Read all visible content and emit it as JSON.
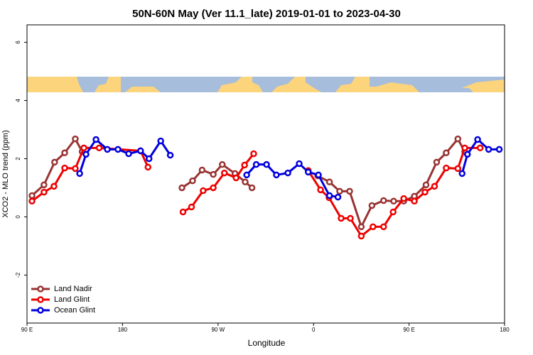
{
  "chart_data": {
    "type": "line",
    "title": "50N-60N May (Ver 11.1_late)   2019-01-01 to 2023-04-30",
    "xlabel": "Longitude",
    "ylabel": "XCO2 - MLO trend (ppm)",
    "xlim": [
      90,
      540
    ],
    "ylim": [
      -3.65,
      6.6
    ],
    "xticks": [
      {
        "value": 90,
        "label": "90 E"
      },
      {
        "value": 180,
        "label": "180"
      },
      {
        "value": 270,
        "label": "90 W"
      },
      {
        "value": 360,
        "label": "0"
      },
      {
        "value": 450,
        "label": "90 E"
      },
      {
        "value": 540,
        "label": "180"
      }
    ],
    "yticks": [
      -2,
      0,
      2,
      4,
      6
    ],
    "legend": "bottom-left",
    "series": [
      {
        "name": "Land Nadir",
        "color": "#993333",
        "x": [
          94.7,
          106,
          116,
          125.5,
          135.5,
          142,
          null,
          236,
          246,
          255,
          265.5,
          274,
          286,
          295.6,
          302,
          null,
          364,
          375,
          384.6,
          394,
          405,
          415,
          426,
          435.5,
          445,
          455,
          466,
          476,
          485,
          496,
          502.5
        ],
        "values": [
          0.73,
          1.1,
          1.88,
          2.2,
          2.68,
          2.24,
          null,
          1.0,
          1.24,
          1.61,
          1.46,
          1.8,
          1.49,
          1.2,
          1.0,
          null,
          1.41,
          1.2,
          0.88,
          0.88,
          -0.34,
          0.39,
          0.56,
          0.54,
          0.54,
          0.71,
          1.1,
          1.88,
          2.2,
          2.68,
          2.24
        ]
      },
      {
        "name": "Land Glint",
        "color": "#ee0000",
        "x": [
          94.7,
          106,
          115.4,
          125.5,
          135.5,
          143.6,
          158,
          197,
          204,
          null,
          237,
          245,
          256,
          265.5,
          276,
          287,
          295,
          303.6,
          null,
          355,
          366.6,
          374.6,
          386,
          394.7,
          405,
          416,
          426,
          435,
          445,
          455,
          465,
          474,
          485,
          496,
          502.5,
          517
        ],
        "values": [
          0.54,
          0.85,
          1.05,
          1.68,
          1.66,
          2.37,
          2.37,
          2.27,
          1.71,
          null,
          0.17,
          0.34,
          0.9,
          1.0,
          1.51,
          1.34,
          1.78,
          2.17,
          null,
          1.59,
          0.93,
          0.66,
          -0.05,
          -0.05,
          -0.66,
          -0.34,
          -0.34,
          0.17,
          0.63,
          0.54,
          0.85,
          1.05,
          1.68,
          1.66,
          2.37,
          2.37
        ]
      },
      {
        "name": "Ocean Glint",
        "color": "#0000dd",
        "x": [
          139.6,
          145.6,
          155,
          165.7,
          175.7,
          185.8,
          197,
          205,
          216,
          225,
          null,
          297,
          306,
          315.7,
          325,
          335.8,
          346.5,
          355,
          364.6,
          375,
          383,
          null,
          500,
          505,
          514.6,
          525,
          535
        ],
        "values": [
          1.49,
          2.15,
          2.66,
          2.32,
          2.32,
          2.17,
          2.27,
          2.0,
          2.61,
          2.12,
          null,
          1.44,
          1.8,
          1.8,
          1.44,
          1.51,
          1.83,
          1.54,
          1.44,
          0.73,
          0.68,
          null,
          1.49,
          2.15,
          2.66,
          2.32,
          2.32
        ]
      }
    ]
  }
}
